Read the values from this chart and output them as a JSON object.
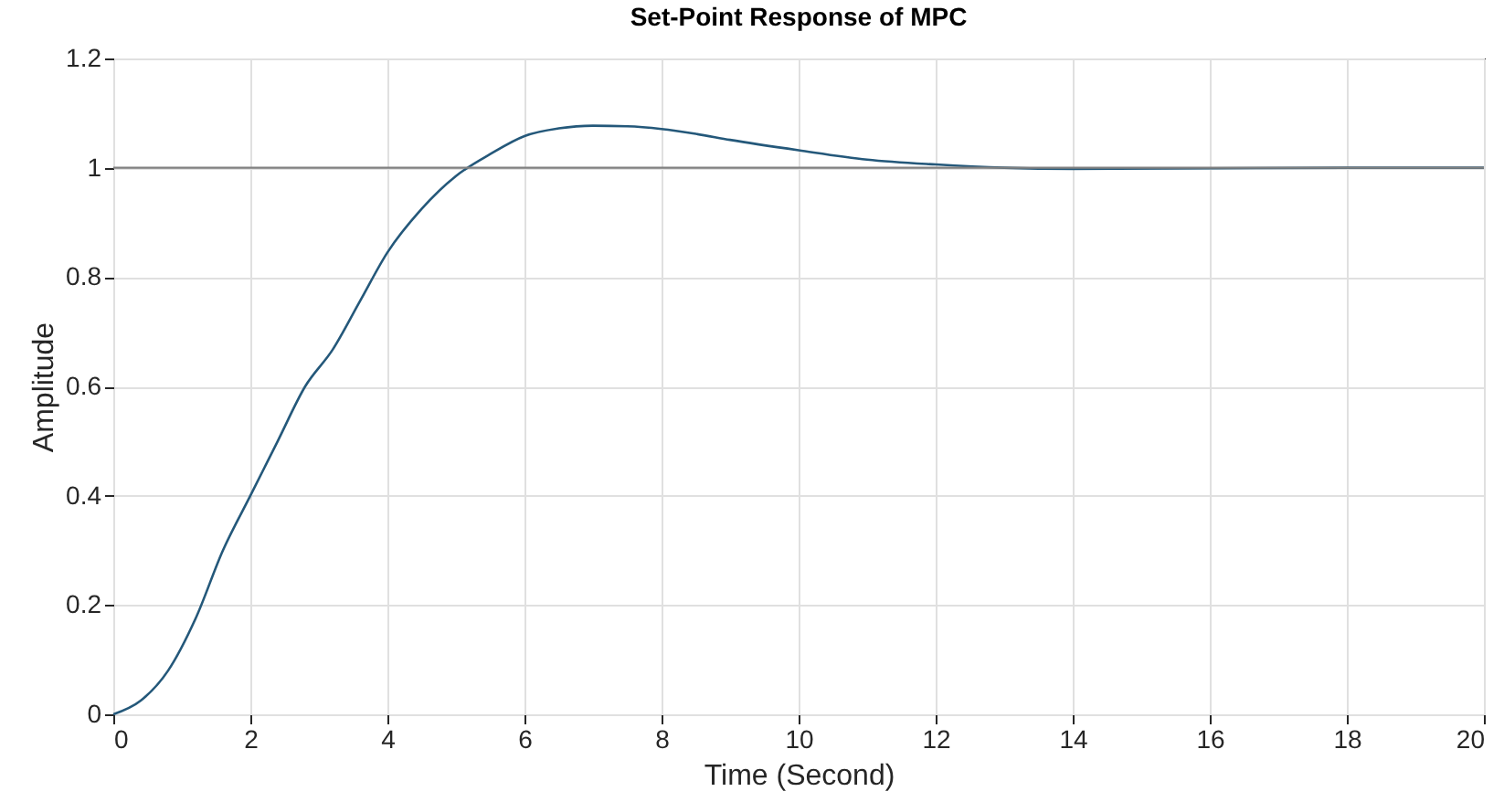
{
  "chart_data": {
    "type": "line",
    "title": "Set-Point Response of MPC",
    "xlabel": "Time (Second)",
    "ylabel": "Amplitude",
    "x": [
      0,
      0.4,
      0.8,
      1.2,
      1.6,
      2,
      2.4,
      2.8,
      3.2,
      3.6,
      4,
      4.5,
      5,
      5.5,
      6,
      6.5,
      7,
      7.5,
      8,
      8.5,
      9,
      10,
      11,
      12,
      13,
      14,
      16,
      18,
      20
    ],
    "series": [
      {
        "color": "#24587a",
        "values": [
          0,
          0.025,
          0.08,
          0.175,
          0.3,
          0.4,
          0.5,
          0.6,
          0.667,
          0.756,
          0.845,
          0.925,
          0.985,
          1.025,
          1.058,
          1.072,
          1.077,
          1.076,
          1.071,
          1.062,
          1.051,
          1.032,
          1.015,
          1.006,
          1.0,
          0.998,
          0.999,
          1.0,
          1.0
        ]
      }
    ],
    "xlim": [
      0,
      20
    ],
    "xticks": [
      0,
      2,
      4,
      6,
      8,
      10,
      12,
      14,
      16,
      18,
      20
    ],
    "ylim": [
      0,
      1.2
    ],
    "yticks": [
      0,
      0.2,
      0.4,
      0.6,
      0.8,
      1,
      1.2
    ],
    "ref_lines": [
      {
        "axis": "y",
        "value": 1,
        "color": "#808080"
      }
    ],
    "grid": true,
    "marker": "none",
    "line_style": "solid"
  }
}
